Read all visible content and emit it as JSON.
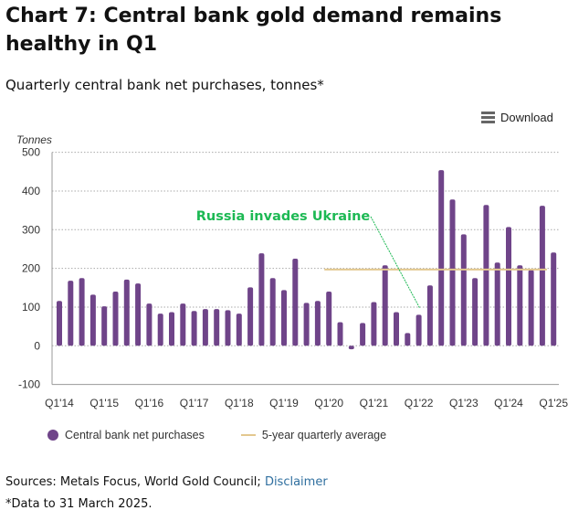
{
  "title": "Chart 7: Central bank gold demand remains healthy in Q1",
  "subtitle": "Quarterly central bank net purchases, tonnes*",
  "download_label": "Download",
  "download_icon": "menu-icon",
  "sources_text": "Sources: Metals Focus, World Gold Council; ",
  "disclaimer_link": "Disclaimer",
  "footnote": "*Data to 31 March 2025.",
  "colors": {
    "bars": "#6f4489",
    "average": "#e3c88f",
    "annotation": "#1db954",
    "link": "#2f6f9f"
  },
  "chart_data": {
    "type": "bar",
    "ylabel": "Tonnes",
    "ylim": [
      -100,
      500
    ],
    "yticks": [
      "500",
      "400",
      "300",
      "200",
      "100",
      "0",
      "-100"
    ],
    "grid": true,
    "legend_position": "bottom-left",
    "xtick_labels": [
      "Q1'14",
      "Q1'15",
      "Q1'16",
      "Q1'17",
      "Q1'18",
      "Q1'19",
      "Q1'20",
      "Q1'21",
      "Q1'22",
      "Q1'23",
      "Q1'24",
      "Q1'25"
    ],
    "categories": [
      "Q1'14",
      "Q2'14",
      "Q3'14",
      "Q4'14",
      "Q1'15",
      "Q2'15",
      "Q3'15",
      "Q4'15",
      "Q1'16",
      "Q2'16",
      "Q3'16",
      "Q4'16",
      "Q1'17",
      "Q2'17",
      "Q3'17",
      "Q4'17",
      "Q1'18",
      "Q2'18",
      "Q3'18",
      "Q4'18",
      "Q1'19",
      "Q2'19",
      "Q3'19",
      "Q4'19",
      "Q1'20",
      "Q2'20",
      "Q3'20",
      "Q4'20",
      "Q1'21",
      "Q2'21",
      "Q3'21",
      "Q4'21",
      "Q1'22",
      "Q2'22",
      "Q3'22",
      "Q4'22",
      "Q1'23",
      "Q2'23",
      "Q3'23",
      "Q4'23",
      "Q1'24",
      "Q2'24",
      "Q3'24",
      "Q4'24",
      "Q1'25"
    ],
    "series": [
      {
        "name": "Central bank net purchases",
        "type": "bar",
        "values": [
          116,
          168,
          175,
          132,
          102,
          140,
          171,
          161,
          109,
          83,
          87,
          109,
          90,
          95,
          95,
          92,
          83,
          151,
          239,
          175,
          144,
          225,
          111,
          116,
          140,
          61,
          -9,
          59,
          113,
          208,
          87,
          33,
          80,
          156,
          454,
          378,
          288,
          175,
          364,
          215,
          307,
          208,
          196,
          362,
          241
        ]
      },
      {
        "name": "5-year quarterly average",
        "type": "line",
        "from": "Q1'20",
        "to": "Q4'24",
        "value": 197
      }
    ],
    "annotation": {
      "text": "Russia invades Ukraine",
      "points_to": "Q1'22"
    }
  }
}
